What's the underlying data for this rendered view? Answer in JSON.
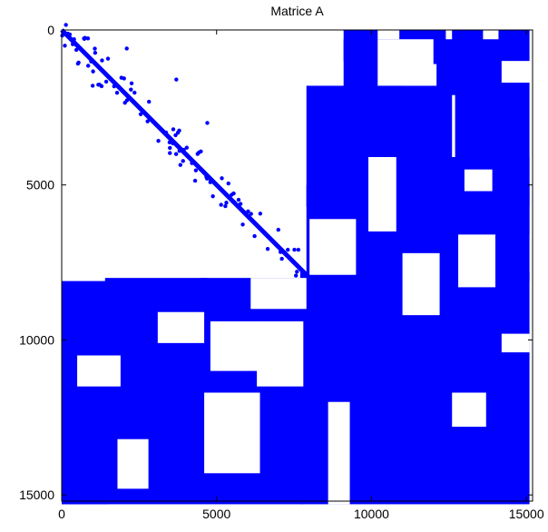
{
  "chart_data": {
    "type": "scatter",
    "title": "Matrice A",
    "xlabel": "",
    "ylabel": "",
    "xlim": [
      0,
      15200
    ],
    "ylim": [
      0,
      15200
    ],
    "y_reversed": true,
    "x_ticks": [
      {
        "value": 0,
        "label": "0"
      },
      {
        "value": 5000,
        "label": "5000"
      },
      {
        "value": 10000,
        "label": "10000"
      },
      {
        "value": 15000,
        "label": "15000"
      }
    ],
    "y_ticks": [
      {
        "value": 0,
        "label": "0"
      },
      {
        "value": 5000,
        "label": "5000"
      },
      {
        "value": 10000,
        "label": "10000"
      },
      {
        "value": 15000,
        "label": "15000"
      }
    ],
    "marker_color": "#0000ff",
    "diagonal_band": {
      "from": [
        0,
        0
      ],
      "to": [
        8000,
        8000
      ]
    },
    "nonzero_blocks": [
      {
        "x": [
          9100,
          10200
        ],
        "y": [
          0,
          1000
        ]
      },
      {
        "x": [
          10900,
          12400
        ],
        "y": [
          0,
          1100
        ]
      },
      {
        "x": [
          12600,
          13600
        ],
        "y": [
          0,
          1100
        ]
      },
      {
        "x": [
          14100,
          15100
        ],
        "y": [
          0,
          1000
        ]
      },
      {
        "x": [
          9100,
          11000
        ],
        "y": [
          300,
          2000
        ]
      },
      {
        "x": [
          12100,
          14200
        ],
        "y": [
          300,
          2100
        ]
      },
      {
        "x": [
          7900,
          12600
        ],
        "y": [
          1800,
          5700
        ]
      },
      {
        "x": [
          12700,
          15100
        ],
        "y": [
          1700,
          5700
        ]
      },
      {
        "x": [
          8200,
          15100
        ],
        "y": [
          4100,
          6600
        ]
      },
      {
        "x": [
          7900,
          15100
        ],
        "y": [
          5000,
          8100
        ]
      },
      {
        "x": [
          7700,
          15100
        ],
        "y": [
          7800,
          15300
        ]
      },
      {
        "x": [
          0,
          7800
        ],
        "y": [
          8100,
          15300
        ]
      },
      {
        "x": [
          1400,
          4700
        ],
        "y": [
          8000,
          12200
        ]
      },
      {
        "x": [
          4500,
          7900
        ],
        "y": [
          8000,
          12100
        ]
      },
      {
        "x": [
          0,
          700
        ],
        "y": [
          9800,
          15300
        ]
      },
      {
        "x": [
          0,
          1500
        ],
        "y": [
          11400,
          15300
        ]
      }
    ],
    "white_gaps": [
      {
        "x": [
          3100,
          4600
        ],
        "y": [
          9100,
          10100
        ]
      },
      {
        "x": [
          6100,
          7900
        ],
        "y": [
          8000,
          9000
        ]
      },
      {
        "x": [
          6300,
          7800
        ],
        "y": [
          9400,
          11500
        ]
      },
      {
        "x": [
          4800,
          6400
        ],
        "y": [
          9400,
          11000
        ]
      },
      {
        "x": [
          4600,
          6400
        ],
        "y": [
          11700,
          14300
        ]
      },
      {
        "x": [
          1800,
          2800
        ],
        "y": [
          13200,
          14800
        ]
      },
      {
        "x": [
          500,
          1900
        ],
        "y": [
          10500,
          11500
        ]
      },
      {
        "x": [
          8000,
          9500
        ],
        "y": [
          6100,
          7900
        ]
      },
      {
        "x": [
          8600,
          9300
        ],
        "y": [
          12000,
          15300
        ]
      },
      {
        "x": [
          11000,
          12200
        ],
        "y": [
          7200,
          9200
        ]
      },
      {
        "x": [
          12800,
          14000
        ],
        "y": [
          6600,
          8300
        ]
      },
      {
        "x": [
          14200,
          15100
        ],
        "y": [
          9800,
          10400
        ]
      },
      {
        "x": [
          12600,
          13700
        ],
        "y": [
          11700,
          12800
        ]
      },
      {
        "x": [
          10200,
          12000
        ],
        "y": [
          300,
          1800
        ]
      },
      {
        "x": [
          9900,
          10800
        ],
        "y": [
          4100,
          6500
        ]
      },
      {
        "x": [
          13000,
          13900
        ],
        "y": [
          4500,
          5200
        ]
      }
    ]
  }
}
